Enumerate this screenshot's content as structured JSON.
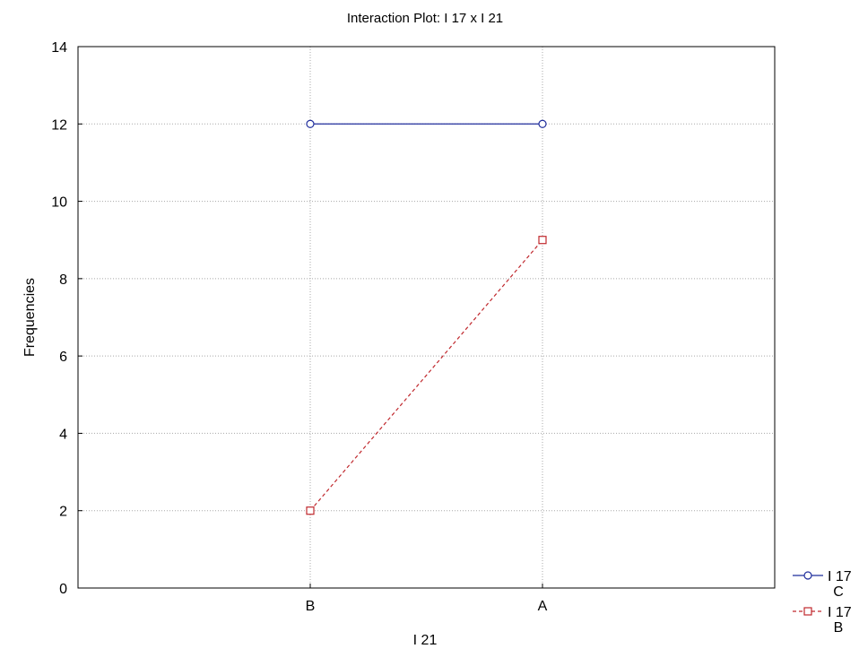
{
  "chart_data": {
    "type": "line",
    "title": "Interaction Plot: I 17 x I 21",
    "xlabel": "I 21",
    "ylabel": "Frequencies",
    "categories": [
      "B",
      "A"
    ],
    "ylim": [
      0,
      14
    ],
    "yticks": [
      0,
      2,
      4,
      6,
      8,
      10,
      12,
      14
    ],
    "grid": true,
    "legend_position": "bottom-right",
    "series": [
      {
        "name": "I 17",
        "sublabel": "C",
        "values": [
          12,
          12
        ],
        "color": "#1f2d9c",
        "line_style": "solid",
        "marker": "circle"
      },
      {
        "name": "I 17",
        "sublabel": "B",
        "values": [
          2,
          9
        ],
        "color": "#c0282d",
        "line_style": "dashed",
        "marker": "square"
      }
    ]
  }
}
